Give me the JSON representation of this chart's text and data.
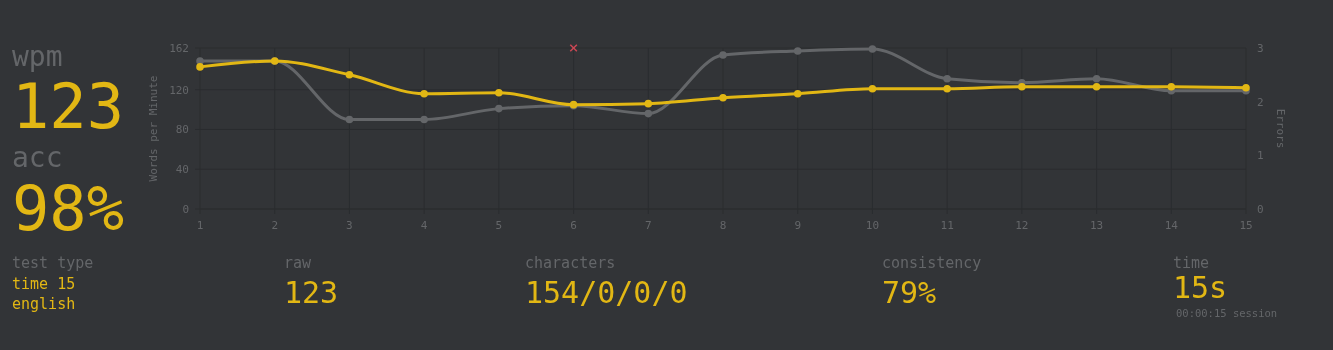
{
  "chart_data": [
    {
      "type": "other",
      "annotations": [
        "wpm",
        "123",
        "acc",
        "98%"
      ]
    },
    {
      "type": "line",
      "xlabel": null,
      "ylabel": "Words per Minute",
      "y2label": "Errors",
      "x": [
        1,
        2,
        3,
        4,
        5,
        6,
        7,
        8,
        9,
        10,
        11,
        12,
        13,
        14,
        15
      ],
      "xlim": [
        1,
        15
      ],
      "xticks": [
        1,
        2,
        3,
        4,
        5,
        6,
        7,
        8,
        9,
        10,
        11,
        12,
        13,
        14,
        15
      ],
      "ylim": [
        0,
        162
      ],
      "yticks": [
        0,
        40,
        80,
        120,
        162
      ],
      "y2lim": [
        0,
        3
      ],
      "y2ticks": [
        0,
        1,
        2,
        3
      ],
      "grid": true,
      "marker": "circle",
      "series": [
        {
          "color": "#646669",
          "values": [
            149,
            149,
            90,
            90,
            101,
            104,
            96,
            155,
            159,
            161,
            131,
            127,
            131,
            119,
            119
          ]
        },
        {
          "color": "#e2b714",
          "values": [
            143,
            149,
            135,
            116,
            117,
            105,
            106,
            112,
            116,
            121,
            121,
            123,
            123,
            123,
            122
          ]
        },
        {
          "type": "scatter",
          "axis": "y2",
          "marker": "cross",
          "color": "#ca4754",
          "x": [
            6
          ],
          "values": [
            3
          ]
        }
      ]
    },
    {
      "type": "other",
      "annotations": [
        "test type",
        "time 15",
        "english",
        "raw",
        "123",
        "characters",
        "154/0/0/0",
        "consistency",
        "79%",
        "time",
        "15s",
        "00:00:15 session"
      ]
    }
  ]
}
